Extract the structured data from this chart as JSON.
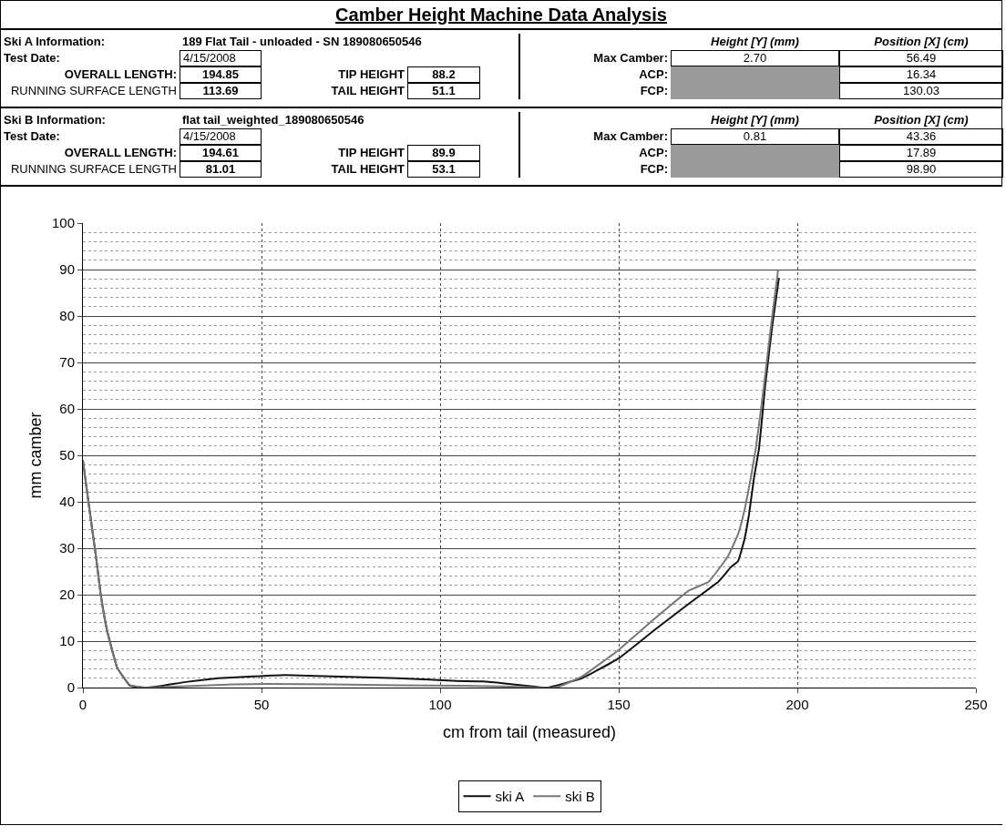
{
  "chart_data": {
    "type": "line",
    "title": "Camber Height Machine Data Analysis",
    "xlabel": "cm from tail (measured)",
    "ylabel": "mm camber",
    "annotations": [
      "Ski A Information:",
      "189 Flat Tail - unloaded - SN 189080650546",
      "Test Date:",
      "4/15/2008",
      "OVERALL LENGTH:",
      "194.85",
      "TIP HEIGHT",
      "88.2",
      "RUNNING SURFACE LENGTH",
      "113.69",
      "TAIL HEIGHT",
      "51.1",
      "Height [Y] (mm)",
      "Position [X] (cm)",
      "Max Camber:",
      "2.70",
      "56.49",
      "ACP:",
      "16.34",
      "FCP:",
      "130.03",
      "Ski B Information:",
      "flat tail_weighted_189080650546",
      "Test Date:",
      "4/15/2008",
      "OVERALL LENGTH:",
      "194.61",
      "TIP HEIGHT",
      "89.9",
      "RUNNING SURFACE LENGTH",
      "81.01",
      "TAIL HEIGHT",
      "53.1",
      "Height [Y] (mm)",
      "Position [X] (cm)",
      "Max Camber:",
      "0.81",
      "43.36",
      "ACP:",
      "17.89",
      "FCP:",
      "98.90"
    ],
    "series": [
      {
        "name": "ski A",
        "color": "#111111",
        "x": [
          0,
          0.9,
          2.3,
          3.7,
          5.0,
          6.8,
          9.6,
          13.2,
          16.3,
          21.5,
          28.8,
          37.9,
          45.2,
          56.5,
          65.3,
          79,
          88,
          97,
          104.6,
          111.9,
          118,
          124,
          130,
          139.7,
          150,
          159.7,
          169.7,
          177.9,
          181.5,
          183.4,
          185.2,
          186.5,
          187.9,
          189.3,
          191,
          193,
          194.85
        ],
        "values": [
          49,
          43.7,
          35.8,
          28,
          20,
          12.2,
          4.3,
          0.4,
          0,
          0.3,
          1.2,
          2.0,
          2.3,
          2.7,
          2.5,
          2.2,
          2.0,
          1.7,
          1.4,
          1.3,
          0.9,
          0.4,
          0,
          2.0,
          6.3,
          12.2,
          18.1,
          22.8,
          26,
          27.2,
          31.9,
          37.4,
          45.3,
          51.6,
          65,
          78,
          88.2
        ]
      },
      {
        "name": "ski B",
        "color": "#777777",
        "x": [
          0,
          0.9,
          2.3,
          3.7,
          5.0,
          6.8,
          9.6,
          13.2,
          17.9,
          28.8,
          42.5,
          51.6,
          69.9,
          88,
          106,
          120,
          132.5,
          139.7,
          150,
          159.7,
          169.7,
          175.2,
          180.6,
          183.4,
          185.2,
          187,
          188.4,
          190.5,
          192.5,
          194.61
        ],
        "values": [
          49,
          43.5,
          35.5,
          27.8,
          19.8,
          12,
          4.2,
          0.5,
          0,
          0.3,
          0.7,
          0.8,
          0.7,
          0.5,
          0.4,
          0.2,
          0,
          2.4,
          8.1,
          14.6,
          20.9,
          22.8,
          28.3,
          33,
          38.2,
          45.3,
          51.6,
          64,
          77,
          89.9
        ]
      }
    ],
    "xlim": [
      0,
      250
    ],
    "xticks": [
      0,
      50,
      100,
      150,
      200,
      250
    ],
    "ylim": [
      0,
      100
    ],
    "yticks": [
      0,
      10,
      20,
      30,
      40,
      50,
      60,
      70,
      80,
      90,
      100
    ],
    "grid": true,
    "legend": "bottom",
    "line_style": "solid",
    "marker": "none"
  }
}
